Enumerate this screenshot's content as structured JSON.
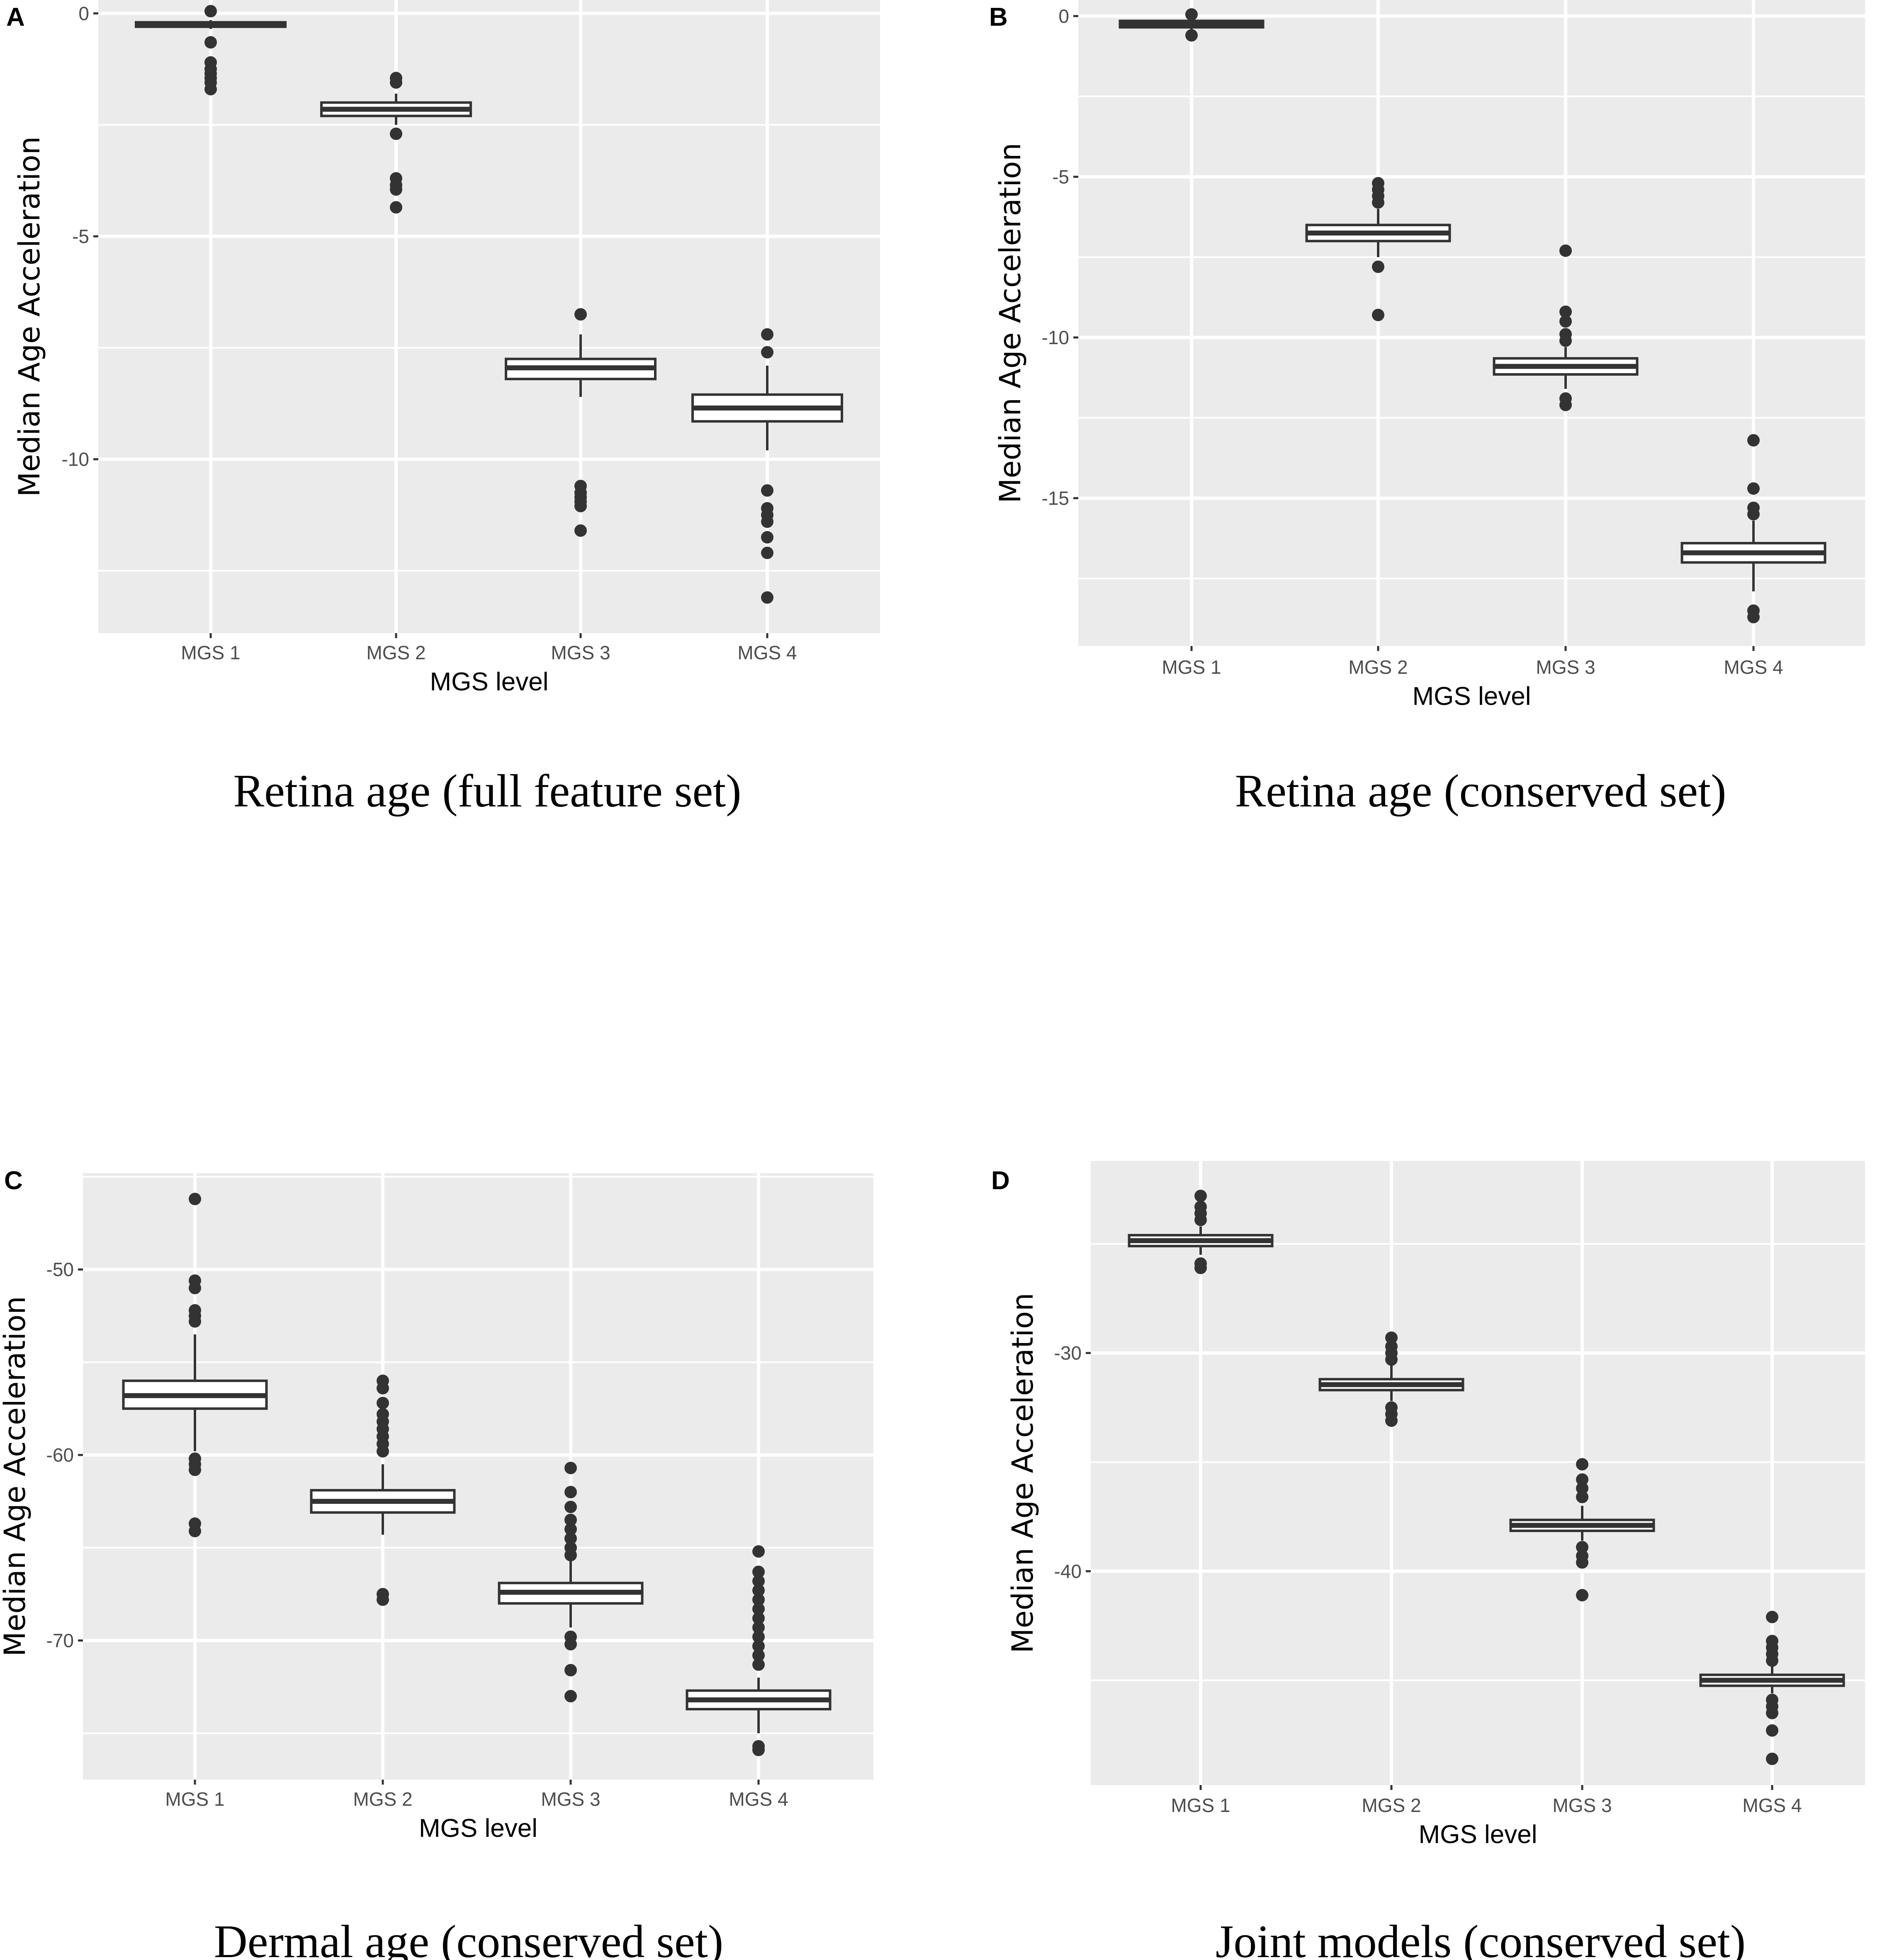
{
  "chart_data": [
    {
      "type": "box",
      "panel_label": "A",
      "caption": "Retina age (full feature set)",
      "xlabel": "MGS level",
      "ylabel": "Median Age Acceleration",
      "ylim": [
        -13.9,
        0.3
      ],
      "yticks": [
        0,
        -5,
        -10
      ],
      "ytick_labels": [
        "0",
        "-5",
        "-10"
      ],
      "categories": [
        "MGS 1",
        "MGS 2",
        "MGS 3",
        "MGS 4"
      ],
      "boxes": [
        {
          "whisker_high": -0.15,
          "q3": -0.2,
          "median": -0.25,
          "q1": -0.3,
          "whisker_low": -0.35,
          "outliers": [
            0.05,
            -0.65,
            -1.1,
            -1.25,
            -1.35,
            -1.45,
            -1.55,
            -1.7
          ]
        },
        {
          "whisker_high": -1.8,
          "q3": -2.0,
          "median": -2.15,
          "q1": -2.3,
          "whisker_low": -2.5,
          "outliers": [
            -1.45,
            -1.55,
            -2.7,
            -3.7,
            -3.85,
            -3.95,
            -4.35
          ]
        },
        {
          "whisker_high": -7.2,
          "q3": -7.75,
          "median": -7.95,
          "q1": -8.2,
          "whisker_low": -8.6,
          "outliers": [
            -6.75,
            -10.6,
            -10.75,
            -10.85,
            -10.95,
            -11.05,
            -11.6
          ]
        },
        {
          "whisker_high": -7.9,
          "q3": -8.55,
          "median": -8.85,
          "q1": -9.15,
          "whisker_low": -9.8,
          "outliers": [
            -7.2,
            -7.6,
            -10.7,
            -11.1,
            -11.25,
            -11.4,
            -11.75,
            -12.1,
            -13.1
          ]
        }
      ]
    },
    {
      "type": "box",
      "panel_label": "B",
      "caption": "Retina age (conserved set)",
      "xlabel": "MGS level",
      "ylabel": "Median Age Acceleration",
      "ylim": [
        -19.6,
        0.5
      ],
      "yticks": [
        0,
        -5,
        -10,
        -15
      ],
      "ytick_labels": [
        "0",
        "-5",
        "-10",
        "-15"
      ],
      "categories": [
        "MGS 1",
        "MGS 2",
        "MGS 3",
        "MGS 4"
      ],
      "boxes": [
        {
          "whisker_high": -0.1,
          "q3": -0.15,
          "median": -0.25,
          "q1": -0.35,
          "whisker_low": -0.45,
          "outliers": [
            0.05,
            -0.6
          ]
        },
        {
          "whisker_high": -6.0,
          "q3": -6.5,
          "median": -6.75,
          "q1": -7.0,
          "whisker_low": -7.5,
          "outliers": [
            -5.2,
            -5.4,
            -5.6,
            -5.8,
            -7.8,
            -9.3
          ]
        },
        {
          "whisker_high": -10.3,
          "q3": -10.65,
          "median": -10.9,
          "q1": -11.15,
          "whisker_low": -11.6,
          "outliers": [
            -7.3,
            -9.2,
            -9.5,
            -9.9,
            -10.1,
            -11.9,
            -12.1
          ]
        },
        {
          "whisker_high": -15.7,
          "q3": -16.4,
          "median": -16.7,
          "q1": -17.0,
          "whisker_low": -17.9,
          "outliers": [
            -13.2,
            -14.7,
            -15.3,
            -15.5,
            -18.5,
            -18.7
          ]
        }
      ]
    },
    {
      "type": "box",
      "panel_label": "C",
      "caption": "Dermal age (conserved set)",
      "xlabel": "MGS level",
      "ylabel": "Median Age Acceleration",
      "ylim": [
        -77.5,
        -44.8
      ],
      "yticks": [
        -50,
        -60,
        -70
      ],
      "ytick_labels": [
        "-50",
        "-60",
        "-70"
      ],
      "categories": [
        "MGS 1",
        "MGS 2",
        "MGS 3",
        "MGS 4"
      ],
      "boxes": [
        {
          "whisker_high": -53.5,
          "q3": -56.0,
          "median": -56.8,
          "q1": -57.5,
          "whisker_low": -59.8,
          "outliers": [
            -46.2,
            -50.6,
            -51.0,
            -52.2,
            -52.5,
            -52.8,
            -60.2,
            -60.5,
            -60.8,
            -63.7,
            -64.1
          ]
        },
        {
          "whisker_high": -60.5,
          "q3": -61.9,
          "median": -62.5,
          "q1": -63.1,
          "whisker_low": -64.3,
          "outliers": [
            -56.0,
            -56.4,
            -57.2,
            -57.8,
            -58.2,
            -58.6,
            -59.0,
            -59.4,
            -59.8,
            -67.5,
            -67.8
          ]
        },
        {
          "whisker_high": -65.7,
          "q3": -66.9,
          "median": -67.4,
          "q1": -68.0,
          "whisker_low": -69.3,
          "outliers": [
            -60.7,
            -62.0,
            -62.8,
            -63.5,
            -64.0,
            -64.5,
            -65.0,
            -65.4,
            -69.8,
            -70.2,
            -71.6,
            -73.0
          ]
        },
        {
          "whisker_high": -72.0,
          "q3": -72.7,
          "median": -73.2,
          "q1": -73.7,
          "whisker_low": -75.0,
          "outliers": [
            -65.2,
            -66.3,
            -66.8,
            -67.3,
            -67.8,
            -68.3,
            -68.8,
            -69.3,
            -69.8,
            -70.3,
            -70.8,
            -71.3,
            -75.7,
            -75.9
          ]
        }
      ]
    },
    {
      "type": "box",
      "panel_label": "D",
      "caption": "Joint models (conserved set)",
      "xlabel": "MGS level",
      "ylabel": "Median Age Acceleration",
      "ylim": [
        -49.8,
        -21.2
      ],
      "yticks": [
        -30,
        -40
      ],
      "ytick_labels": [
        "-30",
        "-40"
      ],
      "categories": [
        "MGS 1",
        "MGS 2",
        "MGS 3",
        "MGS 4"
      ],
      "boxes": [
        {
          "whisker_high": -24.2,
          "q3": -24.6,
          "median": -24.85,
          "q1": -25.1,
          "whisker_low": -25.5,
          "outliers": [
            -22.8,
            -23.3,
            -23.6,
            -23.9,
            -25.9,
            -26.1
          ]
        },
        {
          "whisker_high": -30.5,
          "q3": -31.2,
          "median": -31.45,
          "q1": -31.7,
          "whisker_low": -32.2,
          "outliers": [
            -29.3,
            -29.7,
            -30.0,
            -30.3,
            -32.5,
            -32.8,
            -33.1
          ]
        },
        {
          "whisker_high": -37.0,
          "q3": -37.65,
          "median": -37.9,
          "q1": -38.15,
          "whisker_low": -38.6,
          "outliers": [
            -35.1,
            -35.8,
            -36.2,
            -36.6,
            -38.9,
            -39.3,
            -39.6,
            -41.1
          ]
        },
        {
          "whisker_high": -44.3,
          "q3": -44.75,
          "median": -45.0,
          "q1": -45.25,
          "whisker_low": -45.6,
          "outliers": [
            -42.1,
            -43.2,
            -43.5,
            -43.8,
            -44.1,
            -45.9,
            -46.2,
            -46.5,
            -47.3,
            -48.6
          ]
        }
      ]
    }
  ]
}
